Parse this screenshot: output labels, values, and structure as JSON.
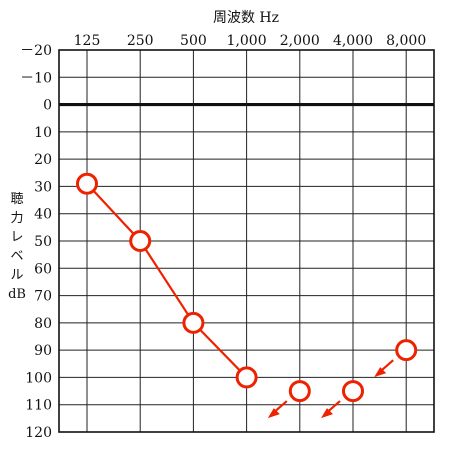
{
  "chart_data": {
    "type": "line",
    "title": "周波数 Hz",
    "xlabel": "周波数 Hz",
    "ylabel_lines": [
      "聴",
      "力",
      "レ",
      "ベ",
      "ル",
      "dB"
    ],
    "x_tick_labels": [
      "125",
      "250",
      "500",
      "1,000",
      "2,000",
      "4,000",
      "8,000"
    ],
    "x_values": [
      125,
      250,
      500,
      1000,
      2000,
      4000,
      8000
    ],
    "y_tick_labels": [
      "－20",
      "－10",
      "0",
      "10",
      "20",
      "30",
      "40",
      "50",
      "60",
      "70",
      "80",
      "90",
      "100",
      "110",
      "120"
    ],
    "ylim": [
      -20,
      120
    ],
    "y_inverted": true,
    "reference_line_y": 0,
    "grid": true,
    "series": [
      {
        "marker": "circle-open",
        "color": "#ee2200",
        "points": [
          {
            "x": 125,
            "y": 29,
            "connected": true
          },
          {
            "x": 250,
            "y": 50,
            "connected": true
          },
          {
            "x": 500,
            "y": 80,
            "connected": true
          },
          {
            "x": 1000,
            "y": 100,
            "connected": true
          },
          {
            "x": 2000,
            "y": 105,
            "connected": false,
            "scale_out_arrow": "down-left"
          },
          {
            "x": 4000,
            "y": 105,
            "connected": false,
            "scale_out_arrow": "down-left"
          },
          {
            "x": 8000,
            "y": 90,
            "connected": false,
            "scale_out_arrow": "down-left"
          }
        ]
      }
    ]
  }
}
